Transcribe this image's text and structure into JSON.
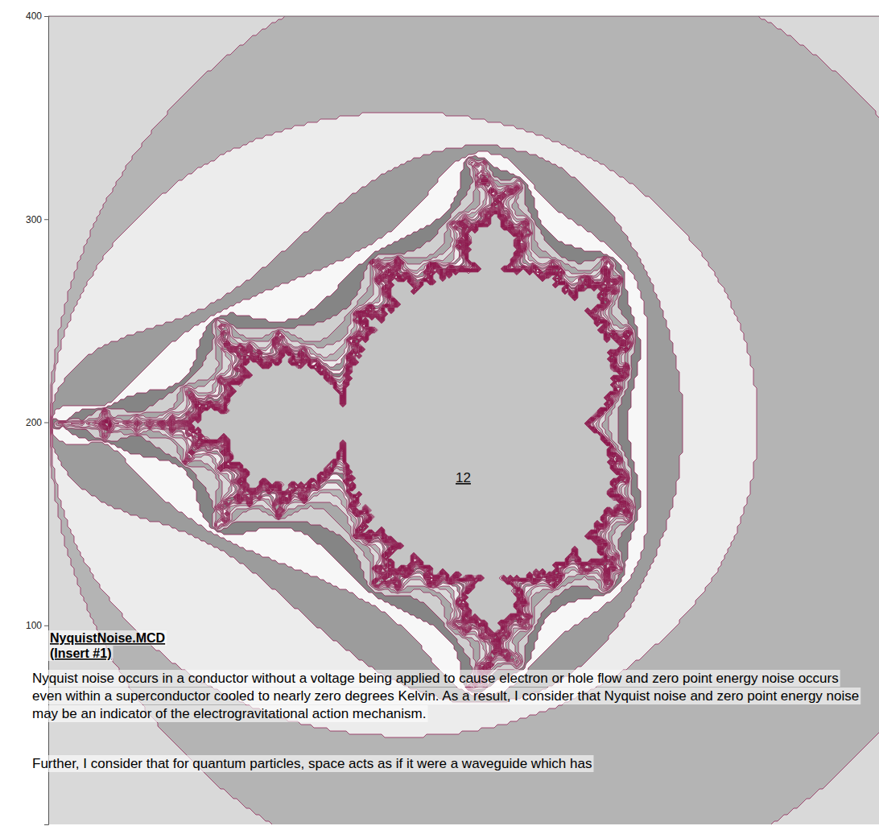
{
  "chart_data": {
    "type": "contour",
    "ylim": [
      2,
      400
    ],
    "yticks": [
      100,
      200,
      300,
      400
    ],
    "tick_labels": "y",
    "annotations": [
      "12"
    ]
  },
  "document": {
    "heading": "NyquistNoise.MCD (Insert #1)",
    "paragraphs": [
      "Nyquist noise occurs in a conductor without a voltage being applied to cause electron or hole flow and zero point energy noise occurs even within a superconductor cooled to nearly zero degrees Kelvin. As a result, I consider that Nyquist noise and zero point energy noise may be an indicator of the electrogravitational action mechanism.",
      "Further, I consider that for quantum particles, space acts as if it were a waveguide which has"
    ]
  }
}
